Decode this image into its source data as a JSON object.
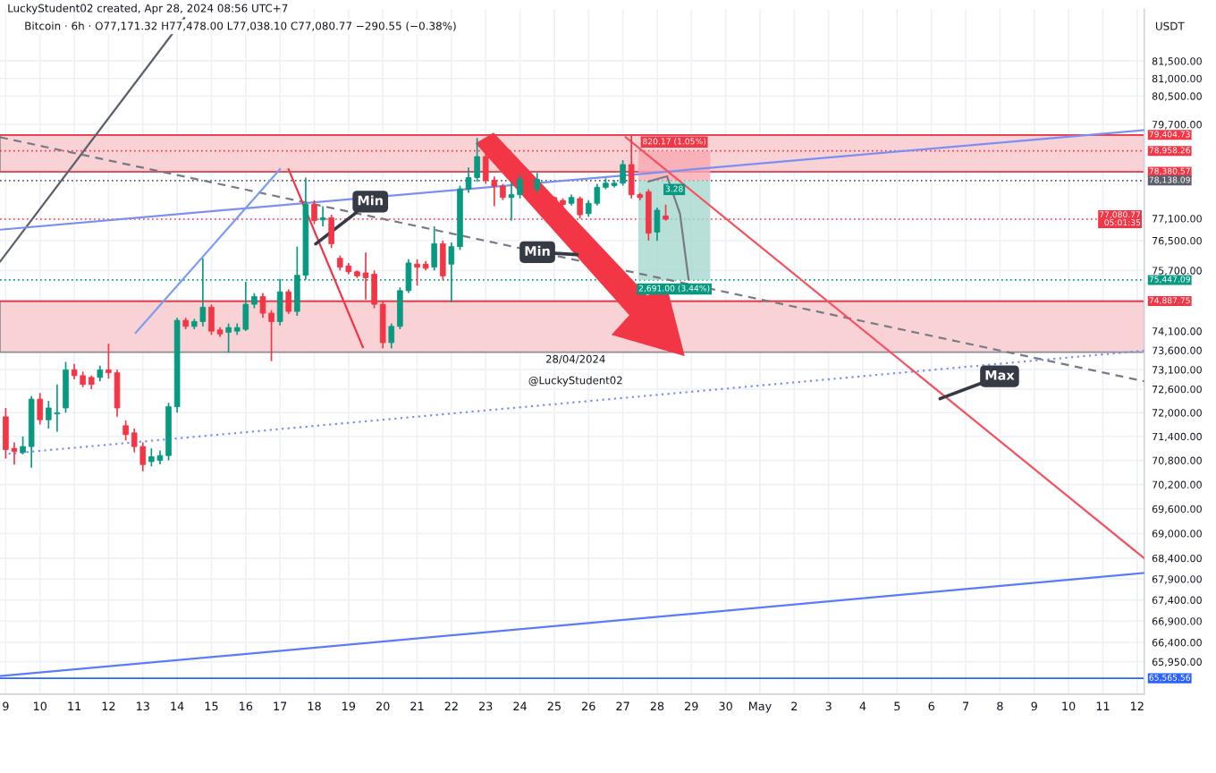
{
  "chart_data": {
    "type": "candlestick",
    "title": "LuckyStudent02 created, Apr 28, 2024 08:56 UTC+7",
    "subtitle": "Bitcoin · 6h · O77,171.32 H77,478.00 L77,038.10 C77,080.77 −290.55 (−0.38%)",
    "x": [
      "2024-04-09T00:00",
      "2024-04-09T06:00",
      "2024-04-09T12:00",
      "2024-04-09T18:00",
      "2024-04-10T00:00",
      "2024-04-10T06:00",
      "2024-04-10T12:00",
      "2024-04-10T18:00",
      "2024-04-11T00:00",
      "2024-04-11T06:00",
      "2024-04-11T12:00",
      "2024-04-11T18:00",
      "2024-04-12T00:00",
      "2024-04-12T06:00",
      "2024-04-12T12:00",
      "2024-04-12T18:00",
      "2024-04-13T00:00",
      "2024-04-13T06:00",
      "2024-04-13T12:00",
      "2024-04-13T18:00",
      "2024-04-14T00:00",
      "2024-04-14T06:00",
      "2024-04-14T12:00",
      "2024-04-14T18:00",
      "2024-04-15T00:00",
      "2024-04-15T06:00",
      "2024-04-15T12:00",
      "2024-04-15T18:00",
      "2024-04-16T00:00",
      "2024-04-16T06:00",
      "2024-04-16T12:00",
      "2024-04-16T18:00",
      "2024-04-17T00:00",
      "2024-04-17T06:00",
      "2024-04-17T12:00",
      "2024-04-17T18:00",
      "2024-04-18T00:00",
      "2024-04-18T06:00",
      "2024-04-18T12:00",
      "2024-04-18T18:00",
      "2024-04-19T00:00",
      "2024-04-19T06:00",
      "2024-04-19T12:00",
      "2024-04-19T18:00",
      "2024-04-20T00:00",
      "2024-04-20T06:00",
      "2024-04-20T12:00",
      "2024-04-20T18:00",
      "2024-04-21T00:00",
      "2024-04-21T06:00",
      "2024-04-21T12:00",
      "2024-04-21T18:00",
      "2024-04-22T00:00",
      "2024-04-22T06:00",
      "2024-04-22T12:00",
      "2024-04-22T18:00",
      "2024-04-23T00:00",
      "2024-04-23T06:00",
      "2024-04-23T12:00",
      "2024-04-23T18:00",
      "2024-04-24T00:00",
      "2024-04-24T12:00",
      "2024-04-25T00:00",
      "2024-04-25T06:00",
      "2024-04-25T12:00",
      "2024-04-25T18:00",
      "2024-04-26T00:00",
      "2024-04-26T06:00",
      "2024-04-26T12:00",
      "2024-04-26T18:00",
      "2024-04-27T00:00",
      "2024-04-27T06:00",
      "2024-04-27T12:00",
      "2024-04-27T18:00",
      "2024-04-28T00:00",
      "2024-04-28T06:00"
    ],
    "ohlc": [
      [
        71895,
        72120,
        70845,
        71070
      ],
      [
        71100,
        71250,
        70695,
        71025
      ],
      [
        70995,
        71400,
        70950,
        71145
      ],
      [
        71145,
        72420,
        70620,
        72345
      ],
      [
        72345,
        72500,
        71700,
        71820
      ],
      [
        71820,
        72300,
        71600,
        72120
      ],
      [
        71970,
        72720,
        71520,
        72000
      ],
      [
        72120,
        73300,
        72000,
        73095
      ],
      [
        73095,
        73250,
        72850,
        72945
      ],
      [
        72945,
        73050,
        72650,
        72720
      ],
      [
        72900,
        72950,
        72600,
        72720
      ],
      [
        72900,
        73200,
        72800,
        73095
      ],
      [
        73095,
        73770,
        72870,
        73020
      ],
      [
        73020,
        73100,
        71900,
        72120
      ],
      [
        71670,
        71800,
        71300,
        71445
      ],
      [
        71490,
        71600,
        71000,
        71145
      ],
      [
        71145,
        71250,
        70530,
        70695
      ],
      [
        70770,
        71100,
        70650,
        70890
      ],
      [
        70800,
        71050,
        70700,
        70920
      ],
      [
        70920,
        72250,
        70800,
        72150
      ],
      [
        72150,
        74450,
        72000,
        74381
      ],
      [
        74381,
        74450,
        74150,
        74224
      ],
      [
        74224,
        74420,
        74150,
        74350
      ],
      [
        74350,
        76026,
        74224,
        74726
      ],
      [
        74726,
        74800,
        74000,
        74098
      ],
      [
        74130,
        74200,
        73950,
        74025
      ],
      [
        74070,
        74300,
        73545,
        74193
      ],
      [
        74098,
        74300,
        74000,
        74193
      ],
      [
        74146,
        75400,
        74100,
        74804
      ],
      [
        74804,
        75100,
        74700,
        75008
      ],
      [
        75008,
        75100,
        74450,
        74569
      ],
      [
        74569,
        74650,
        73320,
        74350
      ],
      [
        74350,
        75478,
        74250,
        75133
      ],
      [
        75133,
        75200,
        74550,
        74616
      ],
      [
        74616,
        76340,
        74500,
        75572
      ],
      [
        75572,
        78220,
        75450,
        77483
      ],
      [
        77483,
        77600,
        76950,
        77045
      ],
      [
        77060,
        77436,
        76888,
        77120
      ],
      [
        77120,
        77200,
        76300,
        76418
      ],
      [
        76026,
        76100,
        75700,
        75791
      ],
      [
        75822,
        75900,
        75600,
        75666
      ],
      [
        75666,
        75700,
        75500,
        75556
      ],
      [
        75635,
        76183,
        74930,
        75509
      ],
      [
        75603,
        75700,
        74700,
        74804
      ],
      [
        74804,
        74900,
        73650,
        73800
      ],
      [
        73800,
        74300,
        73650,
        74224
      ],
      [
        74224,
        75250,
        74150,
        75164
      ],
      [
        75164,
        76000,
        75100,
        75901
      ],
      [
        75870,
        76000,
        75300,
        75791
      ],
      [
        75870,
        75950,
        75700,
        75760
      ],
      [
        75791,
        76888,
        75700,
        76418
      ],
      [
        76418,
        76500,
        75450,
        75556
      ],
      [
        75870,
        76450,
        74851,
        76340
      ],
      [
        76340,
        78000,
        76250,
        77907
      ],
      [
        77907,
        78500,
        77800,
        78220
      ],
      [
        78220,
        79317,
        78100,
        78800
      ],
      [
        78800,
        78900,
        78050,
        78142
      ],
      [
        78142,
        78250,
        77436,
        77985
      ],
      [
        77985,
        78050,
        77600,
        77672
      ],
      [
        77672,
        78100,
        77045,
        77750
      ],
      [
        77750,
        78300,
        77650,
        78173
      ],
      [
        77907,
        78350,
        77800,
        78173
      ],
      [
        77672,
        77700,
        77500,
        77593
      ],
      [
        77593,
        77650,
        77400,
        77483
      ],
      [
        77515,
        77750,
        77450,
        77672
      ],
      [
        77640,
        77700,
        77100,
        77201
      ],
      [
        77233,
        77600,
        77150,
        77515
      ],
      [
        77515,
        78050,
        77450,
        77954
      ],
      [
        77954,
        78200,
        77900,
        78064
      ],
      [
        78000,
        78150,
        77950,
        78064
      ],
      [
        78064,
        78700,
        78000,
        78580
      ],
      [
        78580,
        79400,
        77650,
        77750
      ],
      [
        77750,
        77800,
        77600,
        77672
      ],
      [
        77830,
        77900,
        76500,
        76700
      ],
      [
        76731,
        77400,
        76496,
        77327
      ],
      [
        77171.32,
        77478.0,
        77038.1,
        77080.77
      ]
    ],
    "colors": [
      "#f23645",
      "#f23645",
      "#089981",
      "#089981",
      "#f23645",
      "#089981",
      "#089981",
      "#089981",
      "#f23645",
      "#f23645",
      "#f23645",
      "#089981",
      "#f23645",
      "#f23645",
      "#f23645",
      "#f23645",
      "#f23645",
      "#089981",
      "#089981",
      "#089981",
      "#089981",
      "#f23645",
      "#089981",
      "#089981",
      "#f23645",
      "#f23645",
      "#089981",
      "#089981",
      "#089981",
      "#089981",
      "#f23645",
      "#f23645",
      "#089981",
      "#f23645",
      "#089981",
      "#089981",
      "#f23645",
      "#089981",
      "#f23645",
      "#f23645",
      "#f23645",
      "#f23645",
      "#f23645",
      "#f23645",
      "#f23645",
      "#089981",
      "#089981",
      "#089981",
      "#f23645",
      "#f23645",
      "#089981",
      "#f23645",
      "#089981",
      "#089981",
      "#089981",
      "#089981",
      "#f23645",
      "#f23645",
      "#f23645",
      "#089981",
      "#089981",
      "#089981",
      "#f23645",
      "#f23645",
      "#089981",
      "#f23645",
      "#089981",
      "#089981",
      "#089981",
      "#089981",
      "#089981",
      "#f23645",
      "#f23645",
      "#f23645",
      "#089981",
      "#f23645"
    ],
    "series": [
      {
        "type": "line",
        "color": "#5d606b",
        "line_style": "solid",
        "x": [
          "2024-04-08T20:00",
          "2024-04-14T05:00"
        ],
        "values": [
          75934,
          82745
        ]
      },
      {
        "type": "line",
        "color": "#7b8ff5",
        "line_style": "solid",
        "x": [
          "2024-04-08T20:00",
          "2024-05-12T05:00"
        ],
        "values": [
          76796,
          79540
        ]
      },
      {
        "type": "line",
        "color": "#787b86",
        "line_style": "dashed",
        "x": [
          "2024-04-08T20:00",
          "2024-05-12T05:00"
        ],
        "values": [
          79340,
          72801
        ]
      },
      {
        "type": "line",
        "color": "#7b8ff5",
        "line_style": "dotted",
        "x": [
          "2024-04-09T02:00",
          "2024-05-12T05:00"
        ],
        "values": [
          70966,
          73591
        ]
      },
      {
        "type": "line",
        "color": "#f7525f",
        "line_style": "solid",
        "x": [
          "2024-04-27T02:00",
          "2024-05-12T05:00"
        ],
        "values": [
          79340,
          68397
        ]
      },
      {
        "type": "line",
        "color": "#5b7cfa",
        "line_style": "solid",
        "x": [
          "2024-04-08T20:00",
          "2024-05-12T05:00"
        ],
        "values": [
          65617,
          68046
        ]
      },
      {
        "type": "line",
        "color": "#7b9cf5",
        "line_style": "solid",
        "x": [
          "2024-04-12T19:00",
          "2024-04-17T00:00"
        ],
        "values": [
          74054,
          78450
        ]
      },
      {
        "type": "line",
        "color": "#f23645",
        "line_style": "solid",
        "x": [
          "2024-04-17T06:00",
          "2024-04-19T10:00"
        ],
        "values": [
          78450,
          73683
        ]
      },
      {
        "type": "line",
        "color": "#787b86",
        "line_style": "solid",
        "x": [
          "2024-04-27T18:00",
          "2024-04-28T07:00",
          "2024-04-28T16:00",
          "2024-04-28T22:00"
        ],
        "values": [
          78110,
          78256,
          77231,
          75460
        ]
      },
      {
        "type": "bar",
        "color": "#f7a9b0",
        "x": [
          "2024-04-28T12:00"
        ],
        "base": [
          78138.09
        ],
        "values": [
          820.17
        ]
      },
      {
        "type": "bar",
        "color": "#a6d8cf",
        "x": [
          "2024-04-28T12:00"
        ],
        "base": [
          75447.09
        ],
        "values": [
          2691.0
        ]
      }
    ],
    "bands": [
      {
        "axis": "y",
        "from": 78380.57,
        "to": 79404.73,
        "color": "#f9d2d6"
      },
      {
        "axis": "y",
        "from": 73550,
        "to": 74887.75,
        "color": "#f9d2d6"
      }
    ],
    "ref_lines": [
      {
        "axis": "y",
        "value": 79404.73,
        "label": "79,404.73",
        "color": "#f23645",
        "line_style": "solid"
      },
      {
        "axis": "y",
        "value": 78958.26,
        "label": "78,958.26",
        "color": "#f23645",
        "line_style": "dotted"
      },
      {
        "axis": "y",
        "value": 78380.57,
        "label": "78,380.57",
        "color": "#f23645",
        "line_style": "solid"
      },
      {
        "axis": "y",
        "value": 78138.09,
        "label": "78,138.09",
        "color": "#5d606b",
        "line_style": "dotted"
      },
      {
        "axis": "y",
        "value": 77080.77,
        "label": "77,080.77\n05:01:35",
        "color": "#f23645",
        "line_style": "dotted"
      },
      {
        "axis": "y",
        "value": 75447.09,
        "label": "75,447.09",
        "color": "#089981",
        "line_style": "dotted"
      },
      {
        "axis": "y",
        "value": 74887.75,
        "label": "74,887.75",
        "color": "#f23645",
        "line_style": "solid"
      },
      {
        "axis": "y",
        "value": 65565.56,
        "label": "65,565.56",
        "color": "#2962ff",
        "line_style": "solid"
      }
    ],
    "annotations": [
      "USDT",
      "28/04/2024",
      "@LuckyStudent02",
      {
        "text": "Min",
        "x": "2024-04-18T01:00",
        "y": 76413
      },
      {
        "text": "Min",
        "x": "2024-04-25T16:00",
        "y": 76124
      },
      {
        "text": "Max",
        "x": "2024-05-06T06:00",
        "y": 72356
      },
      {
        "text": "820.17 (1.05%)",
        "x": "2024-04-28T12:00",
        "y": 78958.26
      },
      {
        "text": "3.28",
        "x": "2024-04-28T12:00",
        "y": 78138.09
      },
      {
        "text": "2,691.00 (3.44%)",
        "x": "2024-04-28T12:00",
        "y": 75447.09
      }
    ],
    "xlim": [
      "2024-04-08T20:00",
      "2024-05-12T05:00"
    ],
    "xticks": [
      {
        "value": "2024-04-09",
        "label": "9"
      },
      {
        "value": "2024-04-10",
        "label": "10"
      },
      {
        "value": "2024-04-11",
        "label": "11"
      },
      {
        "value": "2024-04-12",
        "label": "12"
      },
      {
        "value": "2024-04-13",
        "label": "13"
      },
      {
        "value": "2024-04-14",
        "label": "14"
      },
      {
        "value": "2024-04-15",
        "label": "15"
      },
      {
        "value": "2024-04-16",
        "label": "16"
      },
      {
        "value": "2024-04-17",
        "label": "17"
      },
      {
        "value": "2024-04-18",
        "label": "18"
      },
      {
        "value": "2024-04-19",
        "label": "19"
      },
      {
        "value": "2024-04-20",
        "label": "20"
      },
      {
        "value": "2024-04-21",
        "label": "21"
      },
      {
        "value": "2024-04-22",
        "label": "22"
      },
      {
        "value": "2024-04-23",
        "label": "23"
      },
      {
        "value": "2024-04-24",
        "label": "24"
      },
      {
        "value": "2024-04-25",
        "label": "25"
      },
      {
        "value": "2024-04-26",
        "label": "26"
      },
      {
        "value": "2024-04-27",
        "label": "27"
      },
      {
        "value": "2024-04-28",
        "label": "28"
      },
      {
        "value": "2024-04-29",
        "label": "29"
      },
      {
        "value": "2024-04-30",
        "label": "30"
      },
      {
        "value": "2024-05-01",
        "label": "May"
      },
      {
        "value": "2024-05-02",
        "label": "2"
      },
      {
        "value": "2024-05-03",
        "label": "3"
      },
      {
        "value": "2024-05-04",
        "label": "4"
      },
      {
        "value": "2024-05-05",
        "label": "5"
      },
      {
        "value": "2024-05-06",
        "label": "6"
      },
      {
        "value": "2024-05-07",
        "label": "7"
      },
      {
        "value": "2024-05-08",
        "label": "8"
      },
      {
        "value": "2024-05-09",
        "label": "9"
      },
      {
        "value": "2024-05-10",
        "label": "10"
      },
      {
        "value": "2024-05-11",
        "label": "11"
      },
      {
        "value": "2024-05-12",
        "label": "12"
      }
    ],
    "ylim": [
      65200,
      83000
    ],
    "yticks": [
      {
        "value": 81500,
        "label": "81,500.00"
      },
      {
        "value": 81000,
        "label": "81,000.00"
      },
      {
        "value": 80500,
        "label": "80,500.00"
      },
      {
        "value": 79700,
        "label": "79,700.00"
      },
      {
        "value": 77100,
        "label": "77,100.00"
      },
      {
        "value": 76500,
        "label": "76,500.00"
      },
      {
        "value": 75700,
        "label": "75,700.00"
      },
      {
        "value": 74100,
        "label": "74,100.00"
      },
      {
        "value": 73600,
        "label": "73,600.00"
      },
      {
        "value": 73100,
        "label": "73,100.00"
      },
      {
        "value": 72600,
        "label": "72,600.00"
      },
      {
        "value": 72000,
        "label": "72,000.00"
      },
      {
        "value": 71400,
        "label": "71,400.00"
      },
      {
        "value": 70800,
        "label": "70,800.00"
      },
      {
        "value": 70200,
        "label": "70,200.00"
      },
      {
        "value": 69600,
        "label": "69,600.00"
      },
      {
        "value": 69000,
        "label": "69,000.00"
      },
      {
        "value": 68400,
        "label": "68,400.00"
      },
      {
        "value": 67900,
        "label": "67,900.00"
      },
      {
        "value": 67400,
        "label": "67,400.00"
      },
      {
        "value": 66900,
        "label": "66,900.00"
      },
      {
        "value": 66400,
        "label": "66,400.00"
      },
      {
        "value": 65950,
        "label": "65,950.00"
      }
    ],
    "log": true,
    "grid": true
  }
}
